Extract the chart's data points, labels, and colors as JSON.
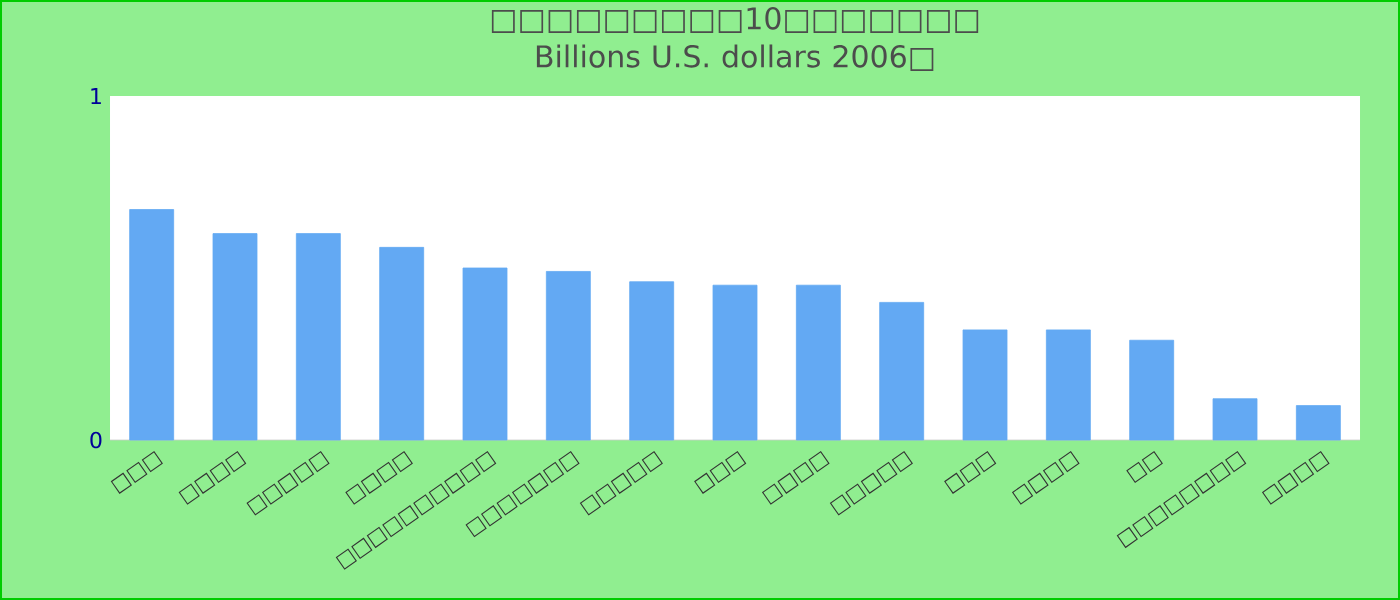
{
  "chart_data": {
    "type": "bar",
    "title": "□□□□□□□□□10□□□□□□□ Billions U.S. dollars 2006□",
    "categories": [
      "□□□",
      "□□□□",
      "□□□□□",
      "□□□□",
      "□□□□□□□□□□",
      "□□□□□□□",
      "□□□□□",
      "□□□",
      "□□□□",
      "□□□□□",
      "□□□",
      "□□□□",
      "□□",
      "□□□□□□□□",
      "□□□□"
    ],
    "values": [
      0.67,
      0.6,
      0.6,
      0.56,
      0.5,
      0.49,
      0.46,
      0.45,
      0.45,
      0.4,
      0.32,
      0.32,
      0.29,
      0.12,
      0.1
    ],
    "color": "#63a9f3",
    "ylim": [
      0,
      1
    ],
    "yticks": [
      0,
      1
    ]
  }
}
